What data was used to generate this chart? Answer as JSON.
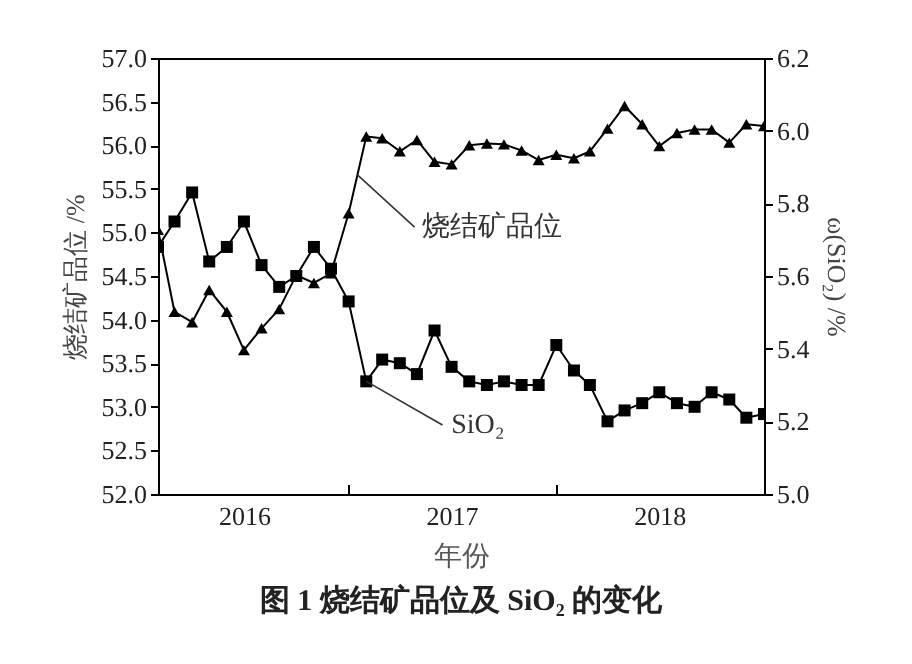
{
  "chart_data": {
    "type": "line",
    "title": "图 1  烧结矿品位及 SiO₂ 的变化",
    "xlabel": "年份",
    "ylabel": "烧结矿品位 /%",
    "y2label": "ω(SiO₂) /%",
    "x": [
      "2016-02",
      "2016-03",
      "2016-04",
      "2016-05",
      "2016-06",
      "2016-07",
      "2016-08",
      "2016-09",
      "2016-10",
      "2016-11",
      "2016-12",
      "2017-01",
      "2017-02",
      "2017-03",
      "2017-04",
      "2017-05",
      "2017-06",
      "2017-07",
      "2017-08",
      "2017-09",
      "2017-10",
      "2017-11",
      "2017-12",
      "2018-01",
      "2018-02",
      "2018-03",
      "2018-04",
      "2018-05",
      "2018-06",
      "2018-07",
      "2018-08",
      "2018-09",
      "2018-10",
      "2018-11",
      "2018-12",
      "2019-01"
    ],
    "xlim": [
      "2016-02",
      "2019-01"
    ],
    "xticks": [
      {
        "value": "2017-01",
        "label": null
      },
      {
        "value": "2018-01",
        "label": null
      },
      {
        "value": "2016-07",
        "label": "2016"
      },
      {
        "value": "2017-07",
        "label": "2017"
      },
      {
        "value": "2018-07",
        "label": "2018"
      }
    ],
    "ylim": [
      52,
      57
    ],
    "yticks": [
      {
        "value": 52,
        "label": "52.0"
      },
      52.5,
      {
        "value": 53,
        "label": "53.0"
      },
      53.5,
      {
        "value": 54,
        "label": "54.0"
      },
      54.5,
      {
        "value": 55,
        "label": "55.0"
      },
      55.5,
      {
        "value": 56,
        "label": "56.0"
      },
      56.5,
      {
        "value": 57,
        "label": "57.0"
      }
    ],
    "y2lim": [
      5.0,
      6.2
    ],
    "y2ticks": [
      {
        "value": 5,
        "label": "5.0"
      },
      5.2,
      5.4,
      5.6,
      5.8,
      {
        "value": 6,
        "label": "6.0"
      },
      6.2
    ],
    "grid": false,
    "legend": false,
    "series": [
      {
        "name": "烧结矿品位",
        "color": "#000000",
        "marker": "triangle",
        "values": [
          55.03,
          54.09,
          53.97,
          54.34,
          54.09,
          53.65,
          53.9,
          54.12,
          54.51,
          54.42,
          54.53,
          55.22,
          56.1,
          56.08,
          55.93,
          56.06,
          55.81,
          55.78,
          56.0,
          56.02,
          56.01,
          55.94,
          55.83,
          55.89,
          55.85,
          55.93,
          56.19,
          56.45,
          56.24,
          55.99,
          56.14,
          56.18,
          56.18,
          56.03,
          56.24,
          56.22
        ]
      },
      {
        "name": "SiO₂",
        "color": "#000000",
        "marker": "square",
        "axis": "y2",
        "values": [
          5.68,
          5.75,
          5.83,
          5.64,
          5.68,
          5.75,
          5.63,
          5.57,
          5.6,
          5.68,
          5.62,
          5.53,
          5.31,
          5.37,
          5.36,
          5.33,
          5.45,
          5.35,
          5.31,
          5.3,
          5.31,
          5.3,
          5.3,
          5.41,
          5.34,
          5.3,
          5.2,
          5.23,
          5.25,
          5.28,
          5.25,
          5.24,
          5.28,
          5.26,
          5.21,
          5.22
        ]
      }
    ]
  }
}
